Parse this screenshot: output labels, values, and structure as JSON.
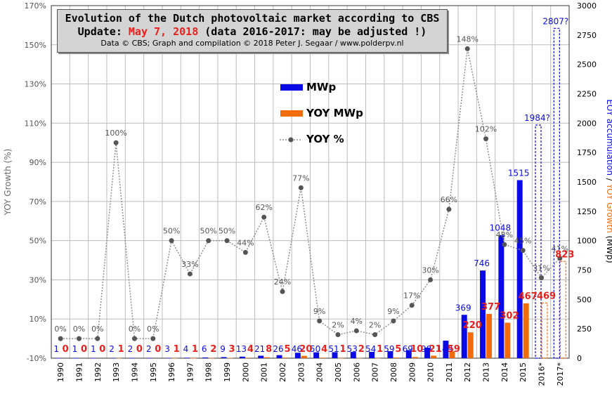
{
  "header": {
    "title_line1": "Evolution  of the Dutch photovoltaic  market according to CBS",
    "title_line2_prefix": "Update: ",
    "title_line2_date": "May 7, 2018",
    "title_line2_suffix": " (data 2016-2017:  may be adjusted !)",
    "credit": "Data © CBS; Graph and compilation © 2018 Peter J. Segaar / www.polderpv.nl"
  },
  "legend": {
    "mwp": "MWp",
    "yoy_mwp": "YOY MWp",
    "yoy_pct": "YOY %"
  },
  "colors": {
    "mwp": "#0a0ae6",
    "yoy_mwp": "#f26c0c",
    "yoy_line": "#909090",
    "yoy_marker": "#555555",
    "mwp_label": "#0a0ae6",
    "yoy_mwp_label": "#e8201c",
    "grid": "#bdbdbd",
    "left_axis_title": "#6a6a6a",
    "right_axis_title_blue": "#0a0ae6",
    "right_axis_title_orange": "#f26c0c"
  },
  "chart_data": {
    "type": "bar",
    "categories": [
      "1990",
      "1991",
      "1992",
      "1993",
      "1994",
      "1995",
      "1996",
      "1997",
      "1998",
      "1999",
      "2000",
      "2001",
      "2002",
      "2003",
      "2004",
      "2005",
      "2006",
      "2007",
      "2008",
      "2009",
      "2010",
      "2011",
      "2012",
      "2013",
      "2014",
      "2015",
      "2016*",
      "2017*"
    ],
    "series": [
      {
        "name": "MWp",
        "axis": "right",
        "values": [
          1,
          1,
          1,
          2,
          2,
          2,
          3,
          4,
          6,
          9,
          13,
          21,
          26,
          46,
          50,
          51,
          53,
          54,
          59,
          69,
          90,
          149,
          369,
          746,
          1048,
          1515,
          1984,
          2807
        ],
        "labels": [
          "1",
          "1",
          "1",
          "2",
          "2",
          "2",
          "3",
          "4",
          "6",
          "9",
          "13",
          "21",
          "26",
          "46",
          "50",
          "51",
          "53",
          "54",
          "59",
          "69",
          "90",
          "149",
          "369",
          "746",
          "1048",
          "1515",
          "1984?",
          "2807?"
        ],
        "estimated_from_index": 26
      },
      {
        "name": "YOY MWp",
        "axis": "right",
        "values": [
          0,
          0,
          0,
          1,
          0,
          0,
          1,
          1,
          2,
          3,
          4,
          8,
          5,
          20,
          4,
          1,
          2,
          1,
          5,
          10,
          21,
          59,
          220,
          377,
          302,
          467,
          469,
          823
        ],
        "labels": [
          "0",
          "0",
          "0",
          "1",
          "0",
          "0",
          "1",
          "1",
          "2",
          "3",
          "4",
          "8",
          "5",
          "20",
          "4",
          "1",
          "2",
          "1",
          "5",
          "10",
          "21",
          "59",
          "220",
          "377",
          "302",
          "467",
          "469",
          "823"
        ],
        "estimated_from_index": 26
      },
      {
        "name": "YOY %",
        "axis": "left",
        "type": "line",
        "values": [
          0,
          0,
          0,
          100,
          0,
          0,
          50,
          33,
          50,
          50,
          44,
          62,
          24,
          77,
          9,
          2,
          4,
          2,
          9,
          17,
          30,
          66,
          148,
          102,
          48,
          45,
          31,
          41
        ],
        "labels": [
          "0%",
          "0%",
          "0%",
          "100%",
          "0%",
          "0%",
          "50%",
          "33%",
          "50%",
          "50%",
          "44%",
          "62%",
          "24%",
          "77%",
          "9%",
          "2%",
          "4%",
          "2%",
          "9%",
          "17%",
          "30%",
          "66%",
          "148%",
          "102%",
          "48%",
          "45%",
          "31%",
          "41%"
        ]
      }
    ],
    "ylabel": "YOY Growth (%)",
    "y2label_part1": "EOY accumulation",
    "y2label_sep": " / ",
    "y2label_part2": "YOY Growth",
    "y2label_part3": " (MWp)",
    "ylim": [
      -10,
      170
    ],
    "yticks": [
      -10,
      10,
      30,
      50,
      70,
      90,
      110,
      130,
      150,
      170
    ],
    "ytick_labels": [
      "-10%",
      "10%",
      "30%",
      "50%",
      "70%",
      "90%",
      "110%",
      "130%",
      "150%",
      "170%"
    ],
    "y2lim": [
      0,
      3000
    ],
    "y2ticks": [
      0,
      250,
      500,
      750,
      1000,
      1250,
      1500,
      1750,
      2000,
      2250,
      2500,
      2750,
      3000
    ],
    "y2tick_labels": [
      "0",
      "250",
      "500",
      "750",
      "1000",
      "1250",
      "1500",
      "1750",
      "2000",
      "2250",
      "2500",
      "2750",
      "3000"
    ],
    "grid": true
  }
}
